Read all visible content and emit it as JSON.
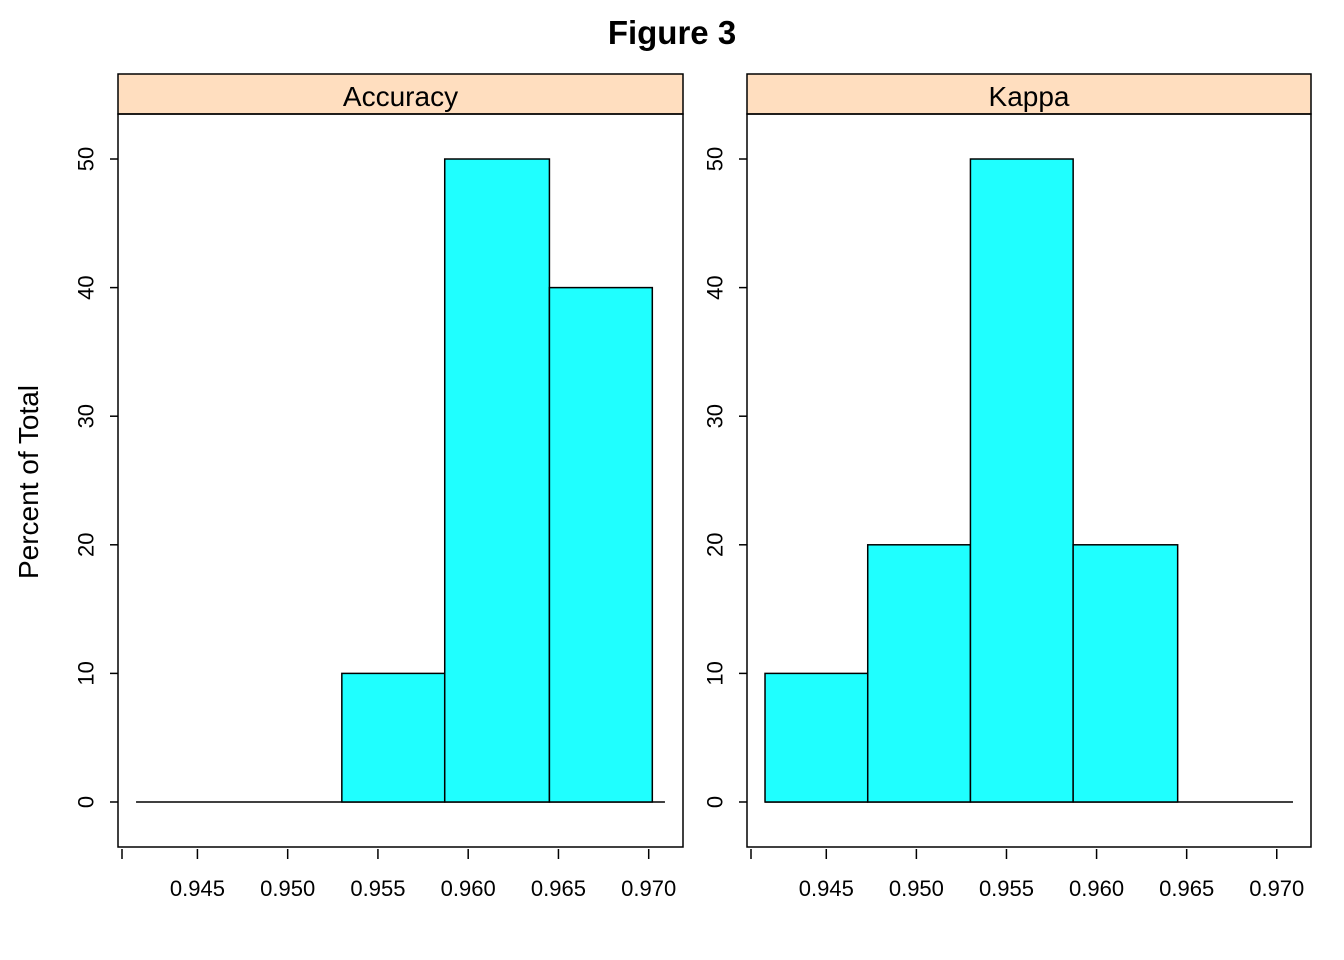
{
  "title": "Figure 3",
  "chart_data": {
    "type": "bar",
    "title": "Figure 3",
    "ylabel": "Percent of Total",
    "xlabel": "",
    "ylim": [
      -3.5,
      53.5
    ],
    "yticks": [
      "0",
      "10",
      "20",
      "30",
      "40",
      "50"
    ],
    "xticks": [
      "0.945",
      "0.950",
      "0.955",
      "0.960",
      "0.965",
      "0.970"
    ],
    "xlim": [
      0.9406,
      0.9719
    ],
    "bar_color": "#1FFFFF",
    "strip_color": "#FFDEBF",
    "panels": [
      {
        "name": "Accuracy",
        "bins": [
          {
            "x0": 0.9416,
            "x1": 0.9473,
            "value": 0
          },
          {
            "x0": 0.9473,
            "x1": 0.953,
            "value": 0
          },
          {
            "x0": 0.953,
            "x1": 0.9587,
            "value": 10
          },
          {
            "x0": 0.9587,
            "x1": 0.9645,
            "value": 50
          },
          {
            "x0": 0.9645,
            "x1": 0.9702,
            "value": 40
          }
        ],
        "baseline": [
          0.9416,
          0.9709
        ]
      },
      {
        "name": "Kappa",
        "bins": [
          {
            "x0": 0.9416,
            "x1": 0.9473,
            "value": 10
          },
          {
            "x0": 0.9473,
            "x1": 0.953,
            "value": 20
          },
          {
            "x0": 0.953,
            "x1": 0.9587,
            "value": 50
          },
          {
            "x0": 0.9587,
            "x1": 0.9645,
            "value": 20
          },
          {
            "x0": 0.9645,
            "x1": 0.9702,
            "value": 0
          }
        ],
        "baseline": [
          0.9416,
          0.9709
        ]
      }
    ]
  }
}
